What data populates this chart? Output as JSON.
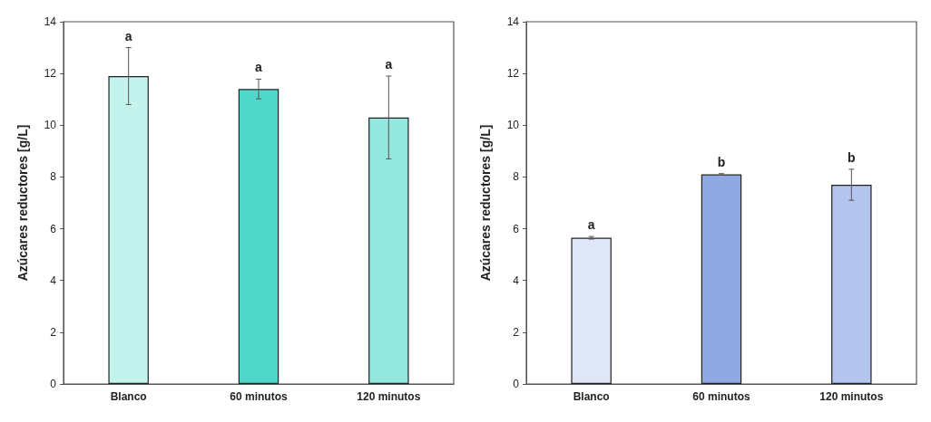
{
  "chart_data": [
    {
      "type": "bar",
      "ylabel": "Azúcares reductores [g/L]",
      "categories": [
        "Blanco",
        "60 minutos",
        "120 minutos"
      ],
      "values": [
        11.9,
        11.4,
        10.3
      ],
      "errors": [
        1.1,
        0.38,
        1.6
      ],
      "colors": [
        "#c4f2ec",
        "#4fd8c9",
        "#93e7de"
      ],
      "ylim": [
        0,
        14
      ],
      "yticks": [
        0,
        2,
        4,
        6,
        8,
        10,
        12,
        14
      ],
      "grid": false,
      "annotations": [
        "a",
        "a",
        "a"
      ]
    },
    {
      "type": "bar",
      "ylabel": "Azúcares reductores [g/L]",
      "categories": [
        "Blanco",
        "60 minutos",
        "120 minutos"
      ],
      "values": [
        5.65,
        8.1,
        7.7
      ],
      "errors": [
        0.05,
        0.03,
        0.6
      ],
      "colors": [
        "#dfe7f8",
        "#90a9e2",
        "#b3c5ee"
      ],
      "ylim": [
        0,
        14
      ],
      "yticks": [
        0,
        2,
        4,
        6,
        8,
        10,
        12,
        14
      ],
      "grid": false,
      "annotations": [
        "a",
        "b",
        "b"
      ]
    }
  ]
}
